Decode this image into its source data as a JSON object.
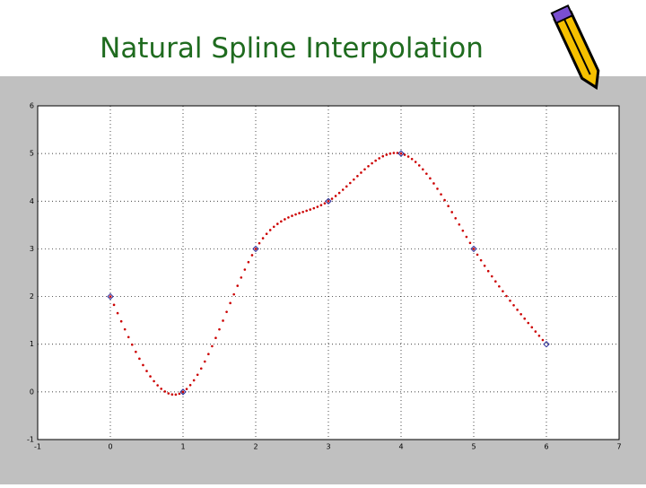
{
  "chart_data": {
    "type": "spline",
    "title": "Natural Spline Interpolation",
    "x": [
      0,
      1,
      2,
      3,
      4,
      5,
      6
    ],
    "values": [
      2,
      0,
      3,
      4,
      5,
      3,
      1
    ],
    "marker_color": "#2b2b9a",
    "line_color": "#cc0000",
    "xlim": [
      -1,
      7
    ],
    "xticks": [
      -1,
      0,
      1,
      2,
      3,
      4,
      5,
      6,
      7
    ],
    "ylim": [
      -1,
      6
    ],
    "yticks": [
      -1,
      0,
      1,
      2,
      3,
      4,
      5,
      6
    ],
    "grid": true
  }
}
